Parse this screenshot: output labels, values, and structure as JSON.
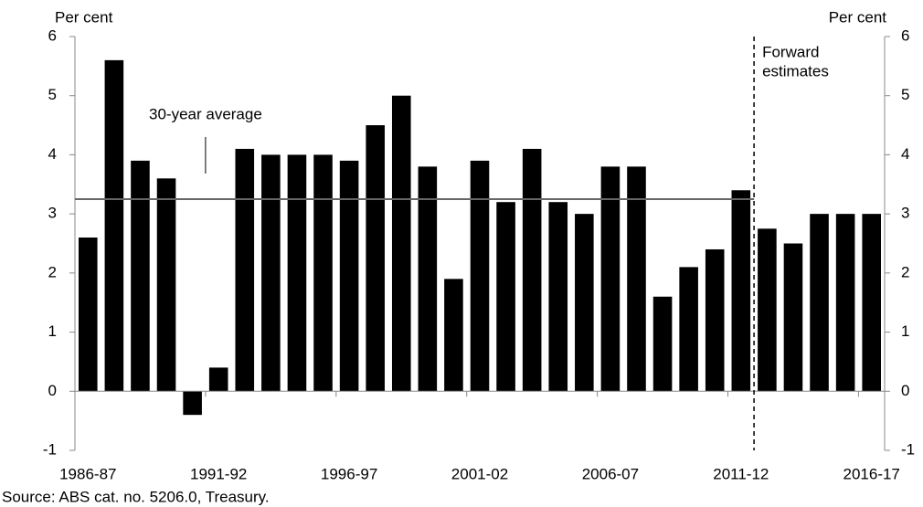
{
  "chart_data": {
    "type": "bar",
    "y_label_left": "Per cent",
    "y_label_right": "Per cent",
    "categories": [
      "1986-87",
      null,
      null,
      null,
      null,
      "1991-92",
      null,
      null,
      null,
      null,
      "1996-97",
      null,
      null,
      null,
      null,
      "2001-02",
      null,
      null,
      null,
      null,
      "2006-07",
      null,
      null,
      null,
      null,
      "2011-12",
      null,
      null,
      null,
      null,
      "2016-17"
    ],
    "values": [
      2.6,
      5.6,
      3.9,
      3.6,
      -0.4,
      0.4,
      4.1,
      4.0,
      4.0,
      4.0,
      3.9,
      4.5,
      5.0,
      3.8,
      1.9,
      3.9,
      3.2,
      4.1,
      3.2,
      3.0,
      3.8,
      3.8,
      1.6,
      2.1,
      2.4,
      3.4,
      2.75,
      2.5,
      3.0,
      3.0,
      3.0
    ],
    "color": "#000000",
    "average": {
      "label": "30-year average",
      "value": 3.25
    },
    "forecast_label": [
      "Forward",
      "estimates"
    ],
    "ylim": [
      -1,
      6
    ],
    "yticks": [
      -1,
      0,
      1,
      2,
      3,
      4,
      5,
      6
    ],
    "source": "Source: ABS cat. no. 5206.0, Treasury."
  }
}
